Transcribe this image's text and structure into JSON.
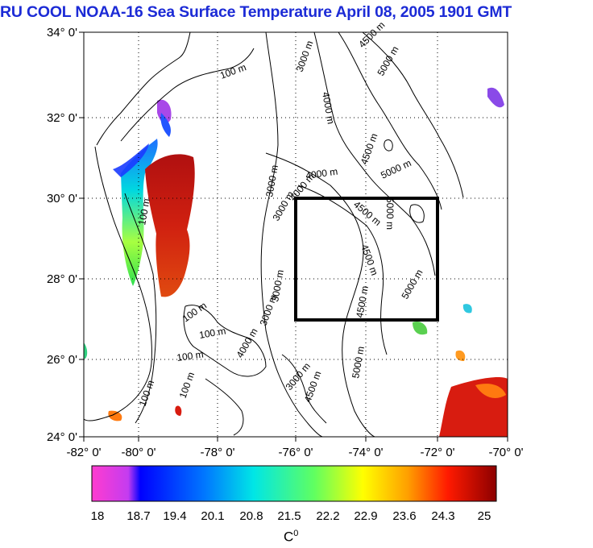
{
  "title": "RU COOL  NOAA-16 Sea Surface Temperature April 08, 2005 1901 GMT",
  "axes": {
    "lat_labels": [
      "34° 0'",
      "32° 0'",
      "30° 0'",
      "28° 0'",
      "26° 0'",
      "24° 0'"
    ],
    "lon_labels": [
      "-82° 0'",
      "-80° 0'",
      "-78° 0'",
      "-76° 0'",
      "-74° 0'",
      "-72° 0'",
      "-70° 0'"
    ]
  },
  "contours": {
    "labels": [
      "100 m",
      "100 m",
      "100 m",
      "100 m",
      "100 m",
      "100 m",
      "100 m",
      "3000 m",
      "3000 m",
      "3000 m",
      "3000 m",
      "3000 m",
      "3000 m",
      "4000 m",
      "4000 m",
      "4000 m",
      "4000 m",
      "4500 m",
      "4500 m",
      "4500 m",
      "4500 m",
      "4500 m",
      "4500 m",
      "5000 m",
      "5000 m",
      "5000 m",
      "5000 m",
      "5000 m"
    ]
  },
  "box": {
    "lon_range": [
      -76,
      -72
    ],
    "lat_range": [
      27,
      30
    ]
  },
  "colorbar": {
    "ticks": [
      "18",
      "18.7",
      "19.4",
      "20.1",
      "20.8",
      "21.5",
      "22.2",
      "22.9",
      "23.6",
      "24.3",
      "25"
    ],
    "min": 18,
    "max": 25,
    "unit_base": "C",
    "unit_sup": "0",
    "colors": [
      "#ff3ccf",
      "#c43cf0",
      "#0000ff",
      "#0078ff",
      "#00e6e6",
      "#40ff80",
      "#c8ff00",
      "#ffff00",
      "#ffa000",
      "#ff2000",
      "#a00000"
    ]
  }
}
